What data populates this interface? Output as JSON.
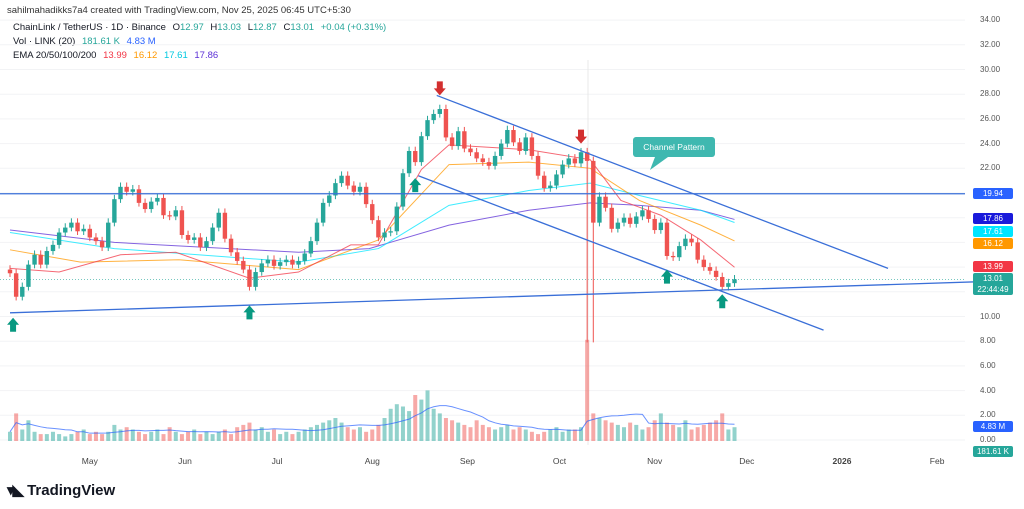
{
  "header": {
    "credit": "sahilmahadikks7a4 created with TradingView.com, Nov 25, 2025 06:45 UTC+5:30",
    "symbol": "ChainLink / TetherUS · 1D · Binance",
    "o_label": "O",
    "o": "12.97",
    "h_label": "H",
    "h": "13.03",
    "l_label": "L",
    "l": "12.87",
    "c_label": "C",
    "c": "13.01",
    "change": "+0.04 (+0.31%)",
    "vol_label": "Vol · LINK (20)",
    "vol": "181.61 K",
    "vol_ma": "4.83 M",
    "ema_label": "EMA 20/50/100/200",
    "ema20": "13.99",
    "ema50": "16.12",
    "ema100": "17.61",
    "ema200": "17.86"
  },
  "colors": {
    "up": "#26a69a",
    "down": "#ef5350",
    "ema20": "#f23645",
    "ema50": "#ff9800",
    "ema100": "#00e5ff",
    "ema200": "#5b2fd6",
    "trend": "#3a6fd8",
    "vol_ma": "#2962ff",
    "arrow_up": "#089981",
    "arrow_down": "#d32f2f",
    "label_bg": "#3fb8b0"
  },
  "chart_data": {
    "type": "candlestick",
    "start": "2025-04-05",
    "interval_days": 2,
    "closes": [
      13.5,
      11.6,
      12.4,
      14.2,
      15,
      14.2,
      15.3,
      15.8,
      16.8,
      17.2,
      17.6,
      16.9,
      17.1,
      16.4,
      16.1,
      15.6,
      17.6,
      19.5,
      20.5,
      20.1,
      20.3,
      19.2,
      18.7,
      19.3,
      19.6,
      18.2,
      18.1,
      18.6,
      16.6,
      16.2,
      16.4,
      15.6,
      16.1,
      17.2,
      18.4,
      16.3,
      15.2,
      14.5,
      13.8,
      12.4,
      13.6,
      14.3,
      14.6,
      14.1,
      14.4,
      14.6,
      14.2,
      14.5,
      15.1,
      16.1,
      17.6,
      19.2,
      19.8,
      20.8,
      21.4,
      20.6,
      20.1,
      20.5,
      19.1,
      17.8,
      16.4,
      16.8,
      16.9,
      18.9,
      21.6,
      23.4,
      22.5,
      24.6,
      25.9,
      26.4,
      26.8,
      24.5,
      23.8,
      25.0,
      23.6,
      23.3,
      22.8,
      22.5,
      22.2,
      23.0,
      24.0,
      25.1,
      24.1,
      23.4,
      24.5,
      23.0,
      21.4,
      20.4,
      20.6,
      21.5,
      22.3,
      22.8,
      22.4,
      23.3,
      22.6,
      17.6,
      19.7,
      18.8,
      17.1,
      17.6,
      18.0,
      17.5,
      18.1,
      18.6,
      17.9,
      17.0,
      17.6,
      14.9,
      14.8,
      15.7,
      16.3,
      16.0,
      14.6,
      14.0,
      13.7,
      13.2,
      12.4,
      12.7,
      13.01
    ],
    "volumes_m": [
      4,
      12,
      5,
      9,
      4,
      3,
      3,
      4,
      3,
      2,
      3,
      4,
      5,
      3,
      4,
      3,
      4,
      7,
      5,
      6,
      5,
      4,
      3,
      4,
      5,
      3,
      6,
      4,
      3,
      4,
      5,
      3,
      4,
      3,
      4,
      5,
      3,
      6,
      7,
      8,
      5,
      6,
      4,
      5,
      3,
      4,
      3,
      4,
      5,
      6,
      7,
      8,
      9,
      10,
      8,
      6,
      5,
      6,
      4,
      5,
      7,
      10,
      14,
      16,
      15,
      13,
      20,
      18,
      22,
      14,
      12,
      10,
      9,
      8,
      7,
      6,
      9,
      7,
      6,
      5,
      6,
      7,
      5,
      6,
      5,
      4,
      3,
      4,
      5,
      6,
      4,
      5,
      5,
      6,
      44,
      12,
      10,
      9,
      8,
      7,
      6,
      8,
      7,
      5,
      6,
      9,
      12,
      8,
      7,
      6,
      9,
      5,
      6,
      7,
      8,
      9,
      12,
      5,
      6
    ],
    "notable_wick": {
      "date": "2025-10-11",
      "low": 7.9
    },
    "ema": {
      "ema200": [
        [
          "2025-04-05",
          17.0
        ],
        [
          "2025-05-09",
          16.0
        ],
        [
          "2025-07-08",
          15.2
        ],
        [
          "2025-07-31",
          15.5
        ],
        [
          "2025-08-26",
          17.4
        ],
        [
          "2025-09-21",
          18.6
        ],
        [
          "2025-10-11",
          19.2
        ],
        [
          "2025-10-27",
          19.0
        ],
        [
          "2025-11-16",
          18.6
        ],
        [
          "2025-11-27",
          17.86
        ]
      ],
      "ema100": [
        [
          "2025-04-05",
          16.8
        ],
        [
          "2025-05-09",
          15.5
        ],
        [
          "2025-07-08",
          14.4
        ],
        [
          "2025-08-03",
          15.5
        ],
        [
          "2025-08-26",
          19.0
        ],
        [
          "2025-09-21",
          20.2
        ],
        [
          "2025-10-11",
          20.8
        ],
        [
          "2025-10-27",
          19.8
        ],
        [
          "2025-11-16",
          18.6
        ],
        [
          "2025-11-27",
          17.61
        ]
      ],
      "ema50": [
        [
          "2025-04-05",
          15.4
        ],
        [
          "2025-04-28",
          14.4
        ],
        [
          "2025-05-30",
          14.6
        ],
        [
          "2025-07-08",
          13.8
        ],
        [
          "2025-08-03",
          16.2
        ],
        [
          "2025-08-26",
          22.3
        ],
        [
          "2025-09-21",
          22.5
        ],
        [
          "2025-10-11",
          22.0
        ],
        [
          "2025-10-27",
          19.4
        ],
        [
          "2025-11-16",
          17.4
        ],
        [
          "2025-11-27",
          16.12
        ]
      ],
      "ema20": [
        [
          "2025-04-05",
          13.9
        ],
        [
          "2025-04-21",
          13.6
        ],
        [
          "2025-05-11",
          15.0
        ],
        [
          "2025-05-29",
          15.2
        ],
        [
          "2025-06-22",
          13.1
        ],
        [
          "2025-07-08",
          13.6
        ],
        [
          "2025-07-25",
          15.8
        ],
        [
          "2025-08-03",
          15.8
        ],
        [
          "2025-08-17",
          21.9
        ],
        [
          "2025-08-26",
          23.9
        ],
        [
          "2025-09-21",
          23.5
        ],
        [
          "2025-10-11",
          22.7
        ],
        [
          "2025-10-21",
          19.4
        ],
        [
          "2025-11-03",
          18.2
        ],
        [
          "2025-11-16",
          16.2
        ],
        [
          "2025-11-27",
          13.99
        ]
      ]
    },
    "drawings": {
      "horizontal_level": 19.94,
      "support_line": [
        [
          "2025-04-05",
          10.3
        ],
        [
          "2026-02-25",
          12.9
        ]
      ],
      "channel_upper": [
        [
          "2025-08-22",
          27.9
        ],
        [
          "2026-01-16",
          13.9
        ]
      ],
      "channel_lower": [
        [
          "2025-08-16",
          21.4
        ],
        [
          "2025-12-26",
          8.9
        ]
      ],
      "arrows_up": [
        [
          "2025-04-06",
          9.9
        ],
        [
          "2025-06-22",
          10.9
        ],
        [
          "2025-08-15",
          21.2
        ],
        [
          "2025-11-05",
          13.8
        ],
        [
          "2025-11-23",
          11.8
        ]
      ],
      "arrows_down": [
        [
          "2025-08-23",
          27.9
        ],
        [
          "2025-10-08",
          24.0
        ]
      ],
      "annotation": "Channel Pattern"
    },
    "y_ticks": [
      "34.00",
      "32.00",
      "30.00",
      "28.00",
      "26.00",
      "24.00",
      "22.00",
      "10.00",
      "8.00",
      "6.00",
      "4.00",
      "2.00",
      "0.00"
    ],
    "x_ticks": [
      [
        "May",
        "2025-05-01"
      ],
      [
        "Jun",
        "2025-06-01"
      ],
      [
        "Jul",
        "2025-07-01"
      ],
      [
        "Aug",
        "2025-08-01"
      ],
      [
        "Sep",
        "2025-09-01"
      ],
      [
        "Oct",
        "2025-10-01"
      ],
      [
        "Nov",
        "2025-11-01"
      ],
      [
        "Dec",
        "2025-12-01"
      ],
      [
        "2026",
        "2026-01-01"
      ],
      [
        "Feb",
        "2026-02-01"
      ]
    ],
    "badges": [
      {
        "text": "19.94",
        "price": 19.94,
        "color": "#2962ff"
      },
      {
        "text": "17.86",
        "price": 17.86,
        "color": "#1a1adb"
      },
      {
        "text": "17.61",
        "price": 17.61,
        "color": "#00e5ff"
      },
      {
        "text": "16.12",
        "price": 16.12,
        "color": "#ff9800"
      },
      {
        "text": "13.99",
        "price": 13.99,
        "color": "#f23645"
      },
      {
        "text": "13.01",
        "sub": "22:44:49",
        "price": 13.01,
        "color": "#26a69a"
      },
      {
        "text": "4.83 M",
        "price": 1.1,
        "color": "#2962ff"
      },
      {
        "text": "181.61 K",
        "price": 0.0,
        "color": "#26a69a"
      }
    ]
  },
  "footer": {
    "logo": "TradingView"
  }
}
